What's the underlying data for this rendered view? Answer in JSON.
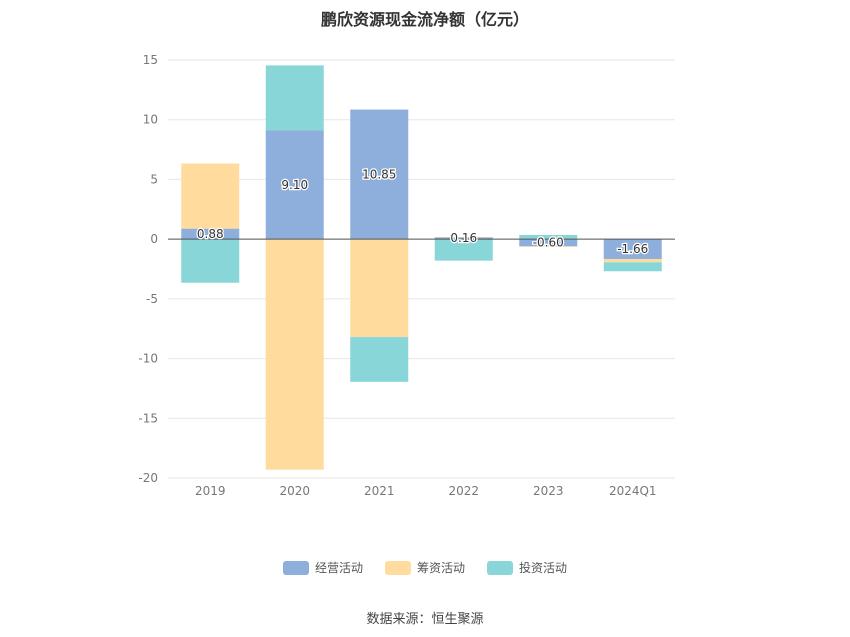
{
  "chart_data": {
    "type": "bar",
    "stacked": true,
    "title": "鹏欣资源现金流净额（亿元）",
    "categories": [
      "2019",
      "2020",
      "2021",
      "2022",
      "2023",
      "2024Q1"
    ],
    "series": [
      {
        "name": "经营活动",
        "color": "#8eaedb",
        "values": [
          0.88,
          9.1,
          10.85,
          0.16,
          -0.6,
          -1.66
        ]
      },
      {
        "name": "筹资活动",
        "color": "#ffdb9e",
        "values": [
          5.45,
          -19.3,
          -8.2,
          0.02,
          -0.05,
          -0.28
        ]
      },
      {
        "name": "投资活动",
        "color": "#88d6d8",
        "values": [
          -3.65,
          5.45,
          -3.75,
          -1.8,
          0.35,
          -0.75
        ]
      }
    ],
    "data_labels": [
      "0.88",
      "9.10",
      "10.85",
      "0.16",
      "-0.60",
      "-1.66"
    ],
    "ylim": [
      -20,
      15
    ],
    "yticks": [
      15,
      10,
      5,
      0,
      -5,
      -10,
      -15,
      -20
    ],
    "grid": true,
    "legend_position": "bottom"
  },
  "source": "数据来源：恒生聚源"
}
